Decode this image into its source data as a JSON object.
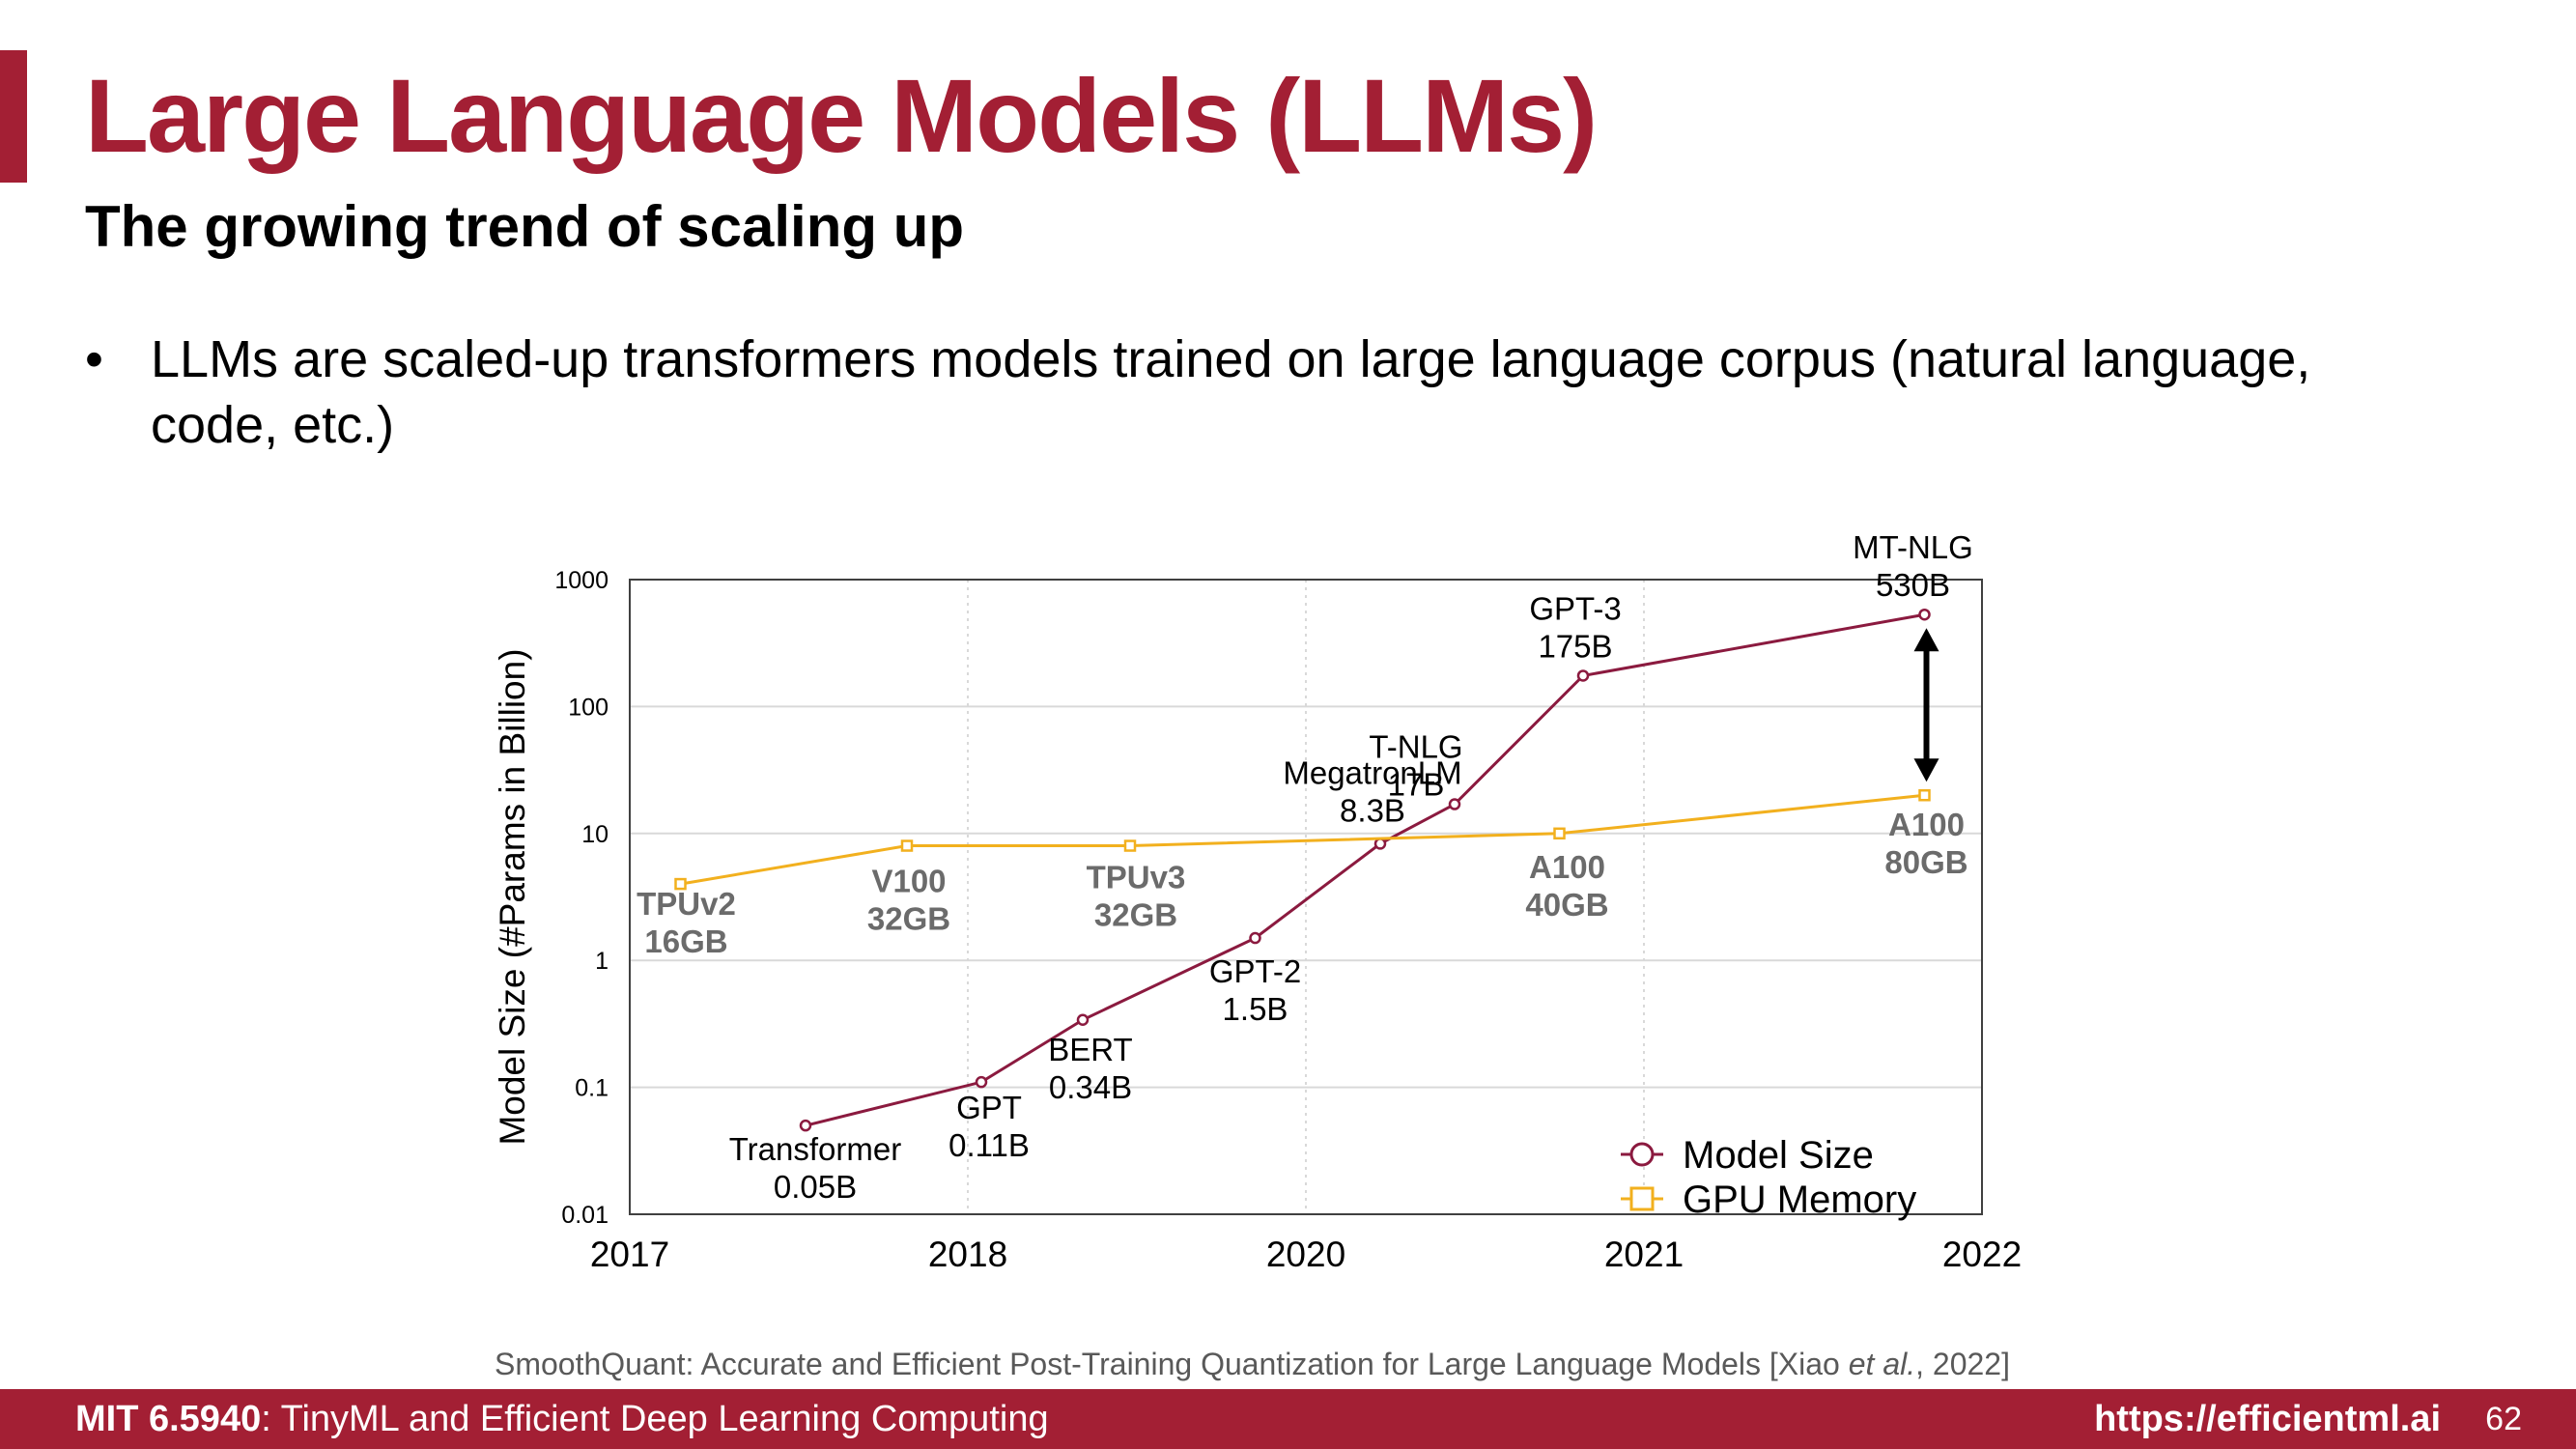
{
  "slide": {
    "title": "Large Language Models (LLMs)",
    "subtitle": "The growing trend of scaling up",
    "bullet": "LLMs are scaled-up transformers models trained on large language corpus (natural language, code, etc.)",
    "bullet_symbol": "•"
  },
  "citation": {
    "prefix": "SmoothQuant: Accurate and Efficient Post-Training Quantization for Large Language Models [Xiao ",
    "italic": "et al.",
    "suffix": ", 2022]"
  },
  "footer": {
    "course_code": "MIT 6.5940",
    "course_name": ": TinyML and Efficient Deep Learning Computing",
    "url": "https://efficientml.ai",
    "page": "62"
  },
  "colors": {
    "brand": "#a31f34",
    "model_series": "#8b1a3f",
    "gpu_series": "#f2b01e",
    "gpu_label": "#6b6b6b",
    "grid": "#d9d9d9"
  },
  "chart_data": {
    "type": "line",
    "ylabel": "Model Size (#Params in Billion)",
    "xlabel": "",
    "y_scale": "log",
    "ylim": [
      0.01,
      1000
    ],
    "y_ticks": [
      {
        "value": 0.01,
        "label": "0.01"
      },
      {
        "value": 0.1,
        "label": "0.1"
      },
      {
        "value": 1,
        "label": "1"
      },
      {
        "value": 10,
        "label": "10"
      },
      {
        "value": 100,
        "label": "100"
      },
      {
        "value": 1000,
        "label": "1000"
      }
    ],
    "x_ticks": [
      {
        "label": "2017"
      },
      {
        "label": "2018"
      },
      {
        "label": "2020"
      },
      {
        "label": "2021"
      },
      {
        "label": "2022"
      }
    ],
    "grid": true,
    "legend_position": "bottom-right",
    "series": [
      {
        "name": "Model Size",
        "marker": "circle",
        "points": [
          {
            "x": 0.52,
            "y": 0.05,
            "label": [
              "Transformer",
              "0.05B"
            ]
          },
          {
            "x": 1.04,
            "y": 0.11,
            "label": [
              "GPT",
              "0.11B"
            ]
          },
          {
            "x": 1.34,
            "y": 0.34,
            "label": [
              "BERT",
              "0.34B"
            ]
          },
          {
            "x": 1.85,
            "y": 1.5,
            "label": [
              "GPT-2",
              "1.5B"
            ]
          },
          {
            "x": 2.22,
            "y": 8.3,
            "label": [
              "MegatronLM",
              "8.3B"
            ]
          },
          {
            "x": 2.44,
            "y": 17,
            "label": [
              "T-NLG",
              "17B"
            ]
          },
          {
            "x": 2.82,
            "y": 175,
            "label": [
              "GPT-3",
              "175B"
            ]
          },
          {
            "x": 3.83,
            "y": 530,
            "label": [
              "MT-NLG",
              "530B"
            ]
          }
        ]
      },
      {
        "name": "GPU Memory",
        "marker": "square",
        "points": [
          {
            "x": 0.15,
            "y": 4,
            "label": [
              "TPUv2",
              "16GB"
            ]
          },
          {
            "x": 0.82,
            "y": 8,
            "label": [
              "V100",
              "32GB"
            ]
          },
          {
            "x": 1.48,
            "y": 8,
            "label": [
              "TPUv3",
              "32GB"
            ]
          },
          {
            "x": 2.75,
            "y": 10,
            "label": [
              "A100",
              "40GB"
            ]
          },
          {
            "x": 3.83,
            "y": 20,
            "label": [
              "A100",
              "80GB"
            ]
          }
        ]
      }
    ]
  }
}
